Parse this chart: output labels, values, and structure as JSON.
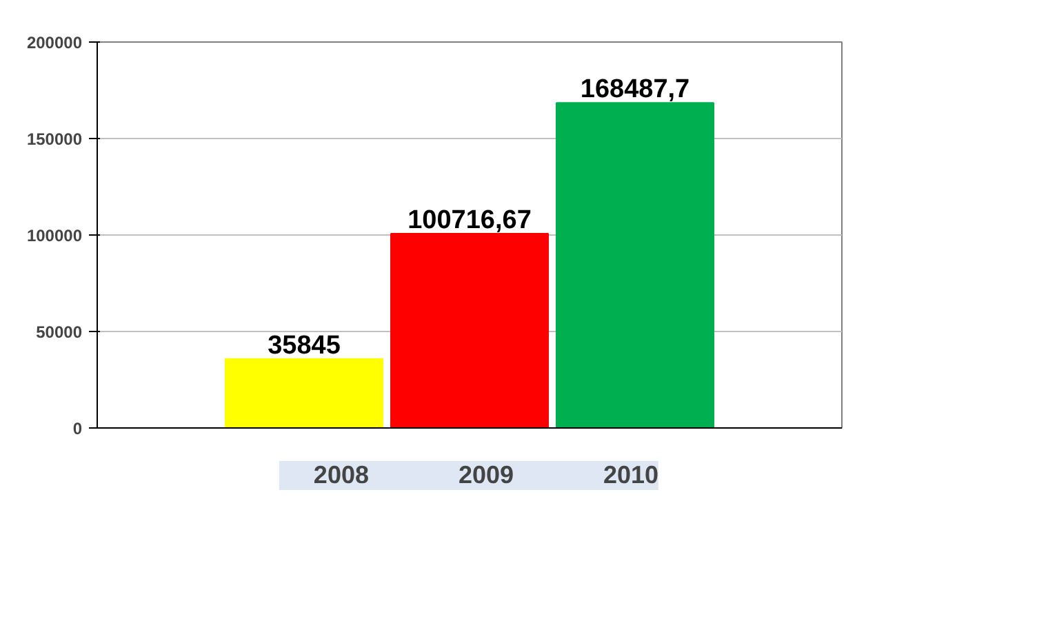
{
  "chart_data": {
    "type": "bar",
    "categories": [
      null
    ],
    "series": [
      {
        "name": "2008",
        "color": "#ffff00",
        "values": [
          35845
        ],
        "value_labels": [
          "35845"
        ]
      },
      {
        "name": "2009",
        "color": "#ff0000",
        "values": [
          100716.67
        ],
        "value_labels": [
          "100716,67"
        ]
      },
      {
        "name": "2010",
        "color": "#00b050",
        "values": [
          168487.7
        ],
        "value_labels": [
          "168487,7"
        ]
      }
    ],
    "ylim": [
      0,
      200000
    ],
    "yticks": [
      0,
      50000,
      100000,
      150000,
      200000
    ],
    "grid": "y",
    "legend": "bottom",
    "tick_labels": "y"
  }
}
